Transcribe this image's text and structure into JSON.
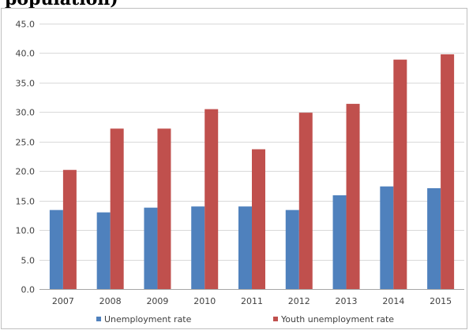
{
  "caption": "population)",
  "chart_data": {
    "type": "bar",
    "categories": [
      "2007",
      "2008",
      "2009",
      "2010",
      "2011",
      "2012",
      "2013",
      "2014",
      "2015"
    ],
    "series": [
      {
        "name": "Unemployment rate",
        "color": "#4f81bd",
        "values": [
          13.4,
          13.0,
          13.8,
          14.0,
          14.0,
          13.4,
          15.9,
          17.4,
          17.1
        ]
      },
      {
        "name": "Youth unemployment rate",
        "color": "#c0504d",
        "values": [
          20.2,
          27.2,
          27.2,
          30.5,
          23.7,
          29.9,
          31.4,
          38.9,
          39.8
        ]
      }
    ],
    "ylim": [
      0,
      45
    ],
    "y_ticks": [
      "0.0",
      "5.0",
      "10.0",
      "15.0",
      "20.0",
      "25.0",
      "30.0",
      "35.0",
      "40.0",
      "45.0"
    ],
    "grid": true,
    "legend_position": "bottom",
    "title": "",
    "xlabel": "",
    "ylabel": ""
  }
}
